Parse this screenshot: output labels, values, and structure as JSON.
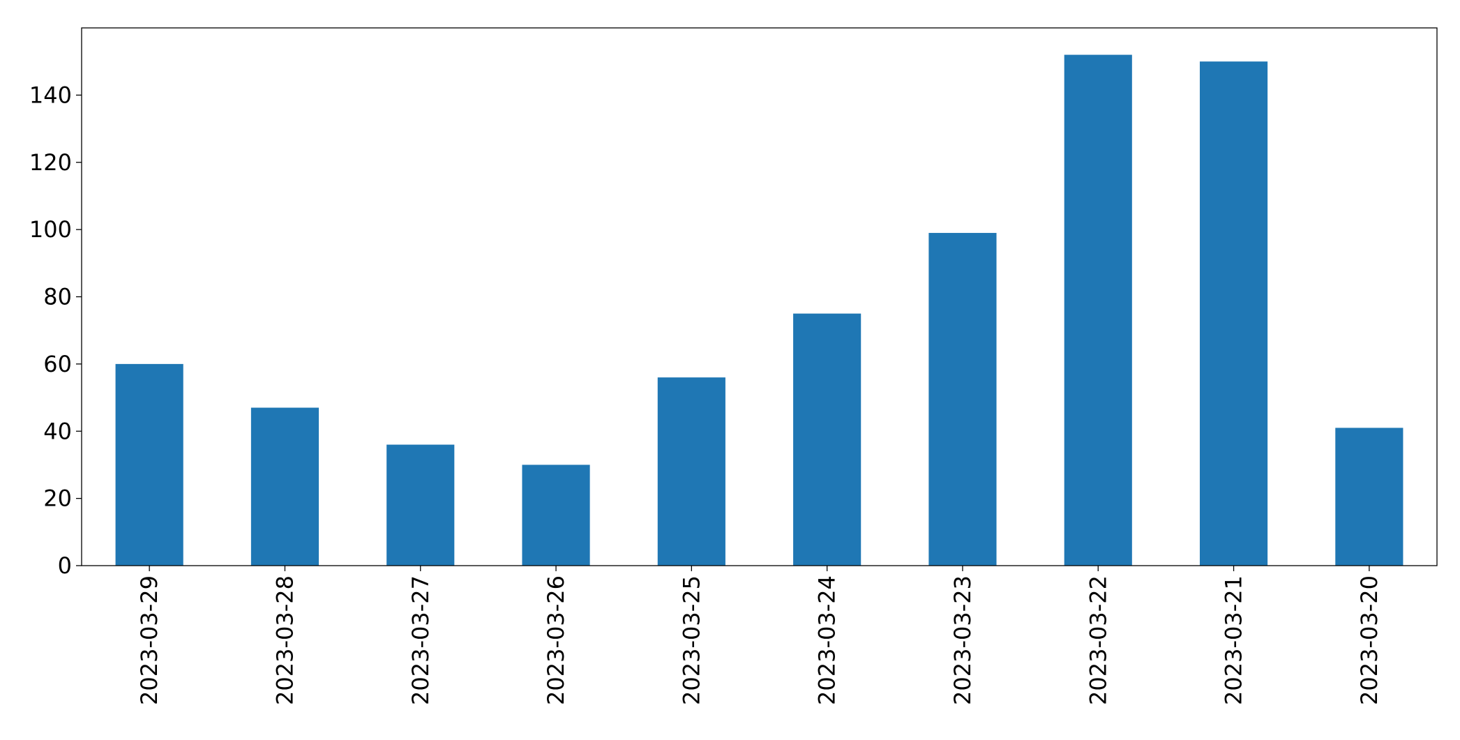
{
  "chart_data": {
    "type": "bar",
    "categories": [
      "2023-03-29",
      "2023-03-28",
      "2023-03-27",
      "2023-03-26",
      "2023-03-25",
      "2023-03-24",
      "2023-03-23",
      "2023-03-22",
      "2023-03-21",
      "2023-03-20"
    ],
    "values": [
      60,
      47,
      36,
      30,
      56,
      75,
      99,
      152,
      150,
      41
    ],
    "title": "",
    "xlabel": "",
    "ylabel": "",
    "ylim": [
      0,
      160
    ],
    "yticks": [
      0,
      20,
      40,
      60,
      80,
      100,
      120,
      140
    ],
    "grid": false,
    "legend": "none",
    "colors": {
      "bar": "#1f77b4"
    }
  }
}
